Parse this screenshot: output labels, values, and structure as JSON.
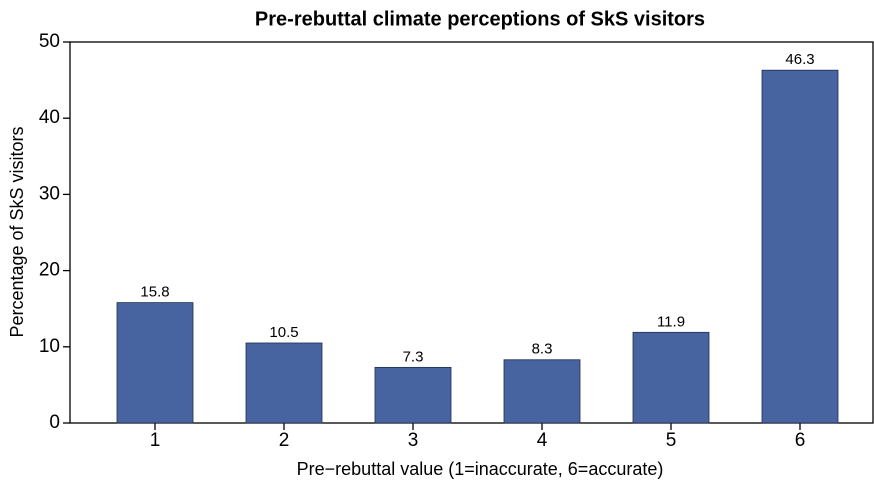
{
  "chart_data": {
    "type": "bar",
    "title": "Pre-rebuttal climate perceptions of SkS visitors",
    "x_label": "Pre−rebuttal value (1=inaccurate, 6=accurate)",
    "y_label": "Percentage of SkS visitors",
    "categories": [
      "1",
      "2",
      "3",
      "4",
      "5",
      "6"
    ],
    "values": [
      15.8,
      10.5,
      7.3,
      8.3,
      11.9,
      46.3
    ],
    "color": "#4764a0",
    "ylim": [
      0,
      50
    ],
    "yticks": [
      0,
      10,
      20,
      30,
      40,
      50
    ],
    "grid": false
  }
}
